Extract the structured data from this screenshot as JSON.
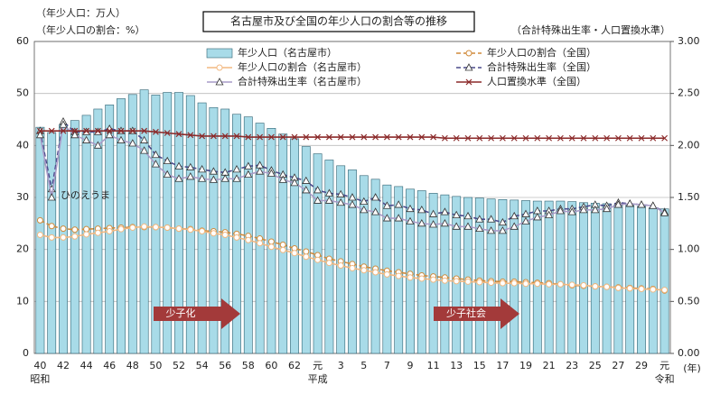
{
  "chart_data": {
    "type": "bar",
    "title": "名古屋市及び全国の年少人口の割合等の推移",
    "y_label_lines": [
      "（年少人口：万人）",
      "（年少人口の割合：%）"
    ],
    "y2_label": "（合計特殊出生率・人口置換水準）",
    "x_unit": "(年)",
    "categories": [
      "40",
      null,
      "42",
      null,
      "44",
      null,
      "46",
      null,
      "48",
      null,
      "50",
      null,
      "52",
      null,
      "54",
      null,
      "56",
      null,
      "58",
      null,
      "60",
      null,
      "62",
      null,
      "元",
      null,
      "3",
      null,
      "5",
      null,
      "7",
      null,
      "9",
      null,
      "11",
      null,
      "13",
      null,
      "15",
      null,
      "17",
      null,
      "19",
      null,
      "21",
      null,
      "23",
      null,
      "25",
      null,
      "27",
      null,
      "29",
      null,
      "元"
    ],
    "era_labels": [
      "昭和",
      null,
      null,
      null,
      null,
      null,
      null,
      null,
      null,
      null,
      null,
      null,
      null,
      null,
      null,
      null,
      null,
      null,
      null,
      null,
      null,
      null,
      null,
      null,
      "平成",
      null,
      null,
      null,
      null,
      null,
      null,
      null,
      null,
      null,
      null,
      null,
      null,
      null,
      null,
      null,
      null,
      null,
      null,
      null,
      null,
      null,
      null,
      null,
      null,
      null,
      null,
      null,
      null,
      null,
      "令和"
    ],
    "ylim": [
      0,
      60
    ],
    "yticks": [
      0,
      10,
      20,
      30,
      40,
      50,
      60
    ],
    "y2lim": [
      0,
      3
    ],
    "y2ticks": [
      {
        "value": 0,
        "label": "0.00"
      },
      {
        "value": 0.5,
        "label": "0.50"
      },
      {
        "value": 1,
        "label": "1.00"
      },
      {
        "value": 1.5,
        "label": "1.50"
      },
      {
        "value": 2,
        "label": "2.00"
      },
      {
        "value": 2.5,
        "label": "2.50"
      },
      {
        "value": 3,
        "label": "3.00"
      }
    ],
    "grid": true,
    "series": [
      {
        "name": "年少人口（名古屋市）",
        "type": "bar",
        "color": "#a8dbe8",
        "axis": "y",
        "values": [
          43.5,
          42.5,
          44.0,
          44.8,
          45.8,
          47.0,
          47.8,
          49.0,
          49.8,
          50.7,
          49.7,
          50.2,
          50.2,
          49.6,
          48.2,
          47.3,
          47.0,
          46.0,
          45.5,
          44.3,
          43.3,
          42.2,
          41.3,
          39.8,
          38.4,
          37.2,
          36.1,
          35.3,
          34.2,
          33.5,
          32.4,
          32.1,
          31.6,
          31.3,
          30.8,
          30.5,
          30.2,
          30.0,
          29.9,
          29.7,
          29.6,
          29.5,
          29.4,
          29.3,
          29.3,
          29.3,
          29.2,
          29.0,
          28.9,
          28.8,
          28.6,
          28.5,
          28.3,
          28.0,
          27.8
        ]
      },
      {
        "name": "年少人口の割合（全国）",
        "type": "line",
        "color": "#d08a3a",
        "marker": "circle",
        "dash": true,
        "axis": "y",
        "values": [
          25.6,
          24.5,
          24.0,
          23.8,
          23.9,
          24.0,
          24.1,
          24.2,
          24.3,
          24.3,
          24.3,
          24.2,
          24.0,
          23.9,
          23.6,
          23.5,
          23.3,
          23.0,
          22.6,
          22.1,
          21.5,
          20.9,
          20.2,
          19.6,
          18.9,
          18.2,
          17.7,
          17.2,
          16.7,
          16.3,
          15.9,
          15.6,
          15.3,
          15.0,
          14.8,
          14.6,
          14.4,
          14.2,
          14.0,
          13.9,
          13.8,
          13.8,
          13.7,
          13.6,
          13.5,
          13.3,
          13.1,
          13.0,
          12.9,
          12.8,
          12.7,
          12.6,
          12.5,
          12.4,
          12.1
        ]
      },
      {
        "name": "年少人口の割合（名古屋市）",
        "type": "line",
        "color": "#f2b880",
        "marker": "circle",
        "dash": false,
        "axis": "y",
        "values": [
          22.8,
          22.3,
          22.3,
          22.5,
          22.9,
          23.2,
          23.5,
          23.9,
          24.2,
          24.4,
          24.3,
          24.2,
          24.0,
          23.8,
          23.5,
          23.1,
          22.8,
          22.3,
          21.8,
          21.2,
          20.5,
          19.9,
          19.3,
          18.6,
          18.0,
          17.4,
          16.9,
          16.4,
          16.0,
          15.6,
          15.2,
          14.9,
          14.6,
          14.4,
          14.2,
          14.0,
          13.9,
          13.8,
          13.7,
          13.6,
          13.5,
          13.5,
          13.4,
          13.4,
          13.3,
          13.3,
          13.2,
          13.1,
          12.9,
          12.8,
          12.6,
          12.5,
          12.4,
          12.3,
          12.2
        ]
      },
      {
        "name": "合計特殊出生率（全国）",
        "type": "line",
        "color": "#4a4a8c",
        "marker": "triangle",
        "dash": true,
        "axis": "y2",
        "values": [
          2.14,
          1.58,
          2.23,
          2.13,
          2.13,
          2.13,
          2.16,
          2.14,
          2.14,
          2.05,
          1.91,
          1.85,
          1.8,
          1.79,
          1.77,
          1.75,
          1.74,
          1.77,
          1.8,
          1.81,
          1.76,
          1.72,
          1.69,
          1.66,
          1.57,
          1.54,
          1.53,
          1.5,
          1.46,
          1.5,
          1.42,
          1.43,
          1.39,
          1.38,
          1.34,
          1.36,
          1.33,
          1.32,
          1.29,
          1.29,
          1.26,
          1.32,
          1.34,
          1.37,
          1.37,
          1.39,
          1.39,
          1.41,
          1.43,
          1.42,
          1.45,
          1.44,
          1.43,
          1.42,
          1.36
        ]
      },
      {
        "name": "合計特殊出生率（名古屋市）",
        "type": "line",
        "color": "#a99cc8",
        "marker": "triangle",
        "dash": false,
        "axis": "y2",
        "values": [
          2.1,
          1.5,
          2.2,
          2.1,
          2.05,
          2.0,
          2.1,
          2.05,
          2.02,
          1.95,
          1.82,
          1.72,
          1.68,
          1.7,
          1.68,
          1.67,
          1.68,
          1.68,
          1.72,
          1.75,
          1.73,
          1.67,
          1.64,
          1.57,
          1.47,
          1.47,
          1.45,
          1.43,
          1.38,
          1.36,
          1.3,
          1.3,
          1.27,
          1.25,
          1.24,
          1.25,
          1.22,
          1.22,
          1.2,
          1.18,
          1.18,
          1.22,
          1.27,
          1.31,
          1.33,
          1.37,
          1.36,
          1.38,
          1.38,
          1.39,
          1.43,
          1.44,
          1.43,
          1.42,
          1.35
        ]
      },
      {
        "name": "人口置換水準（全国）",
        "type": "line",
        "color": "#8b2a2a",
        "marker": "x",
        "dash": false,
        "axis": "y2",
        "values": [
          2.14,
          2.14,
          2.14,
          2.14,
          2.14,
          2.14,
          2.14,
          2.14,
          2.14,
          2.14,
          2.13,
          2.12,
          2.11,
          2.1,
          2.09,
          2.09,
          2.09,
          2.09,
          2.08,
          2.08,
          2.08,
          2.08,
          2.08,
          2.08,
          2.08,
          2.08,
          2.08,
          2.08,
          2.08,
          2.08,
          2.08,
          2.08,
          2.08,
          2.08,
          2.08,
          2.07,
          2.07,
          2.07,
          2.07,
          2.07,
          2.07,
          2.07,
          2.07,
          2.07,
          2.07,
          2.07,
          2.07,
          2.07,
          2.07,
          2.07,
          2.07,
          2.07,
          2.07,
          2.07,
          2.07
        ]
      }
    ],
    "annotations": [
      "ひのえうま",
      "少子化",
      "少子社会"
    ]
  }
}
